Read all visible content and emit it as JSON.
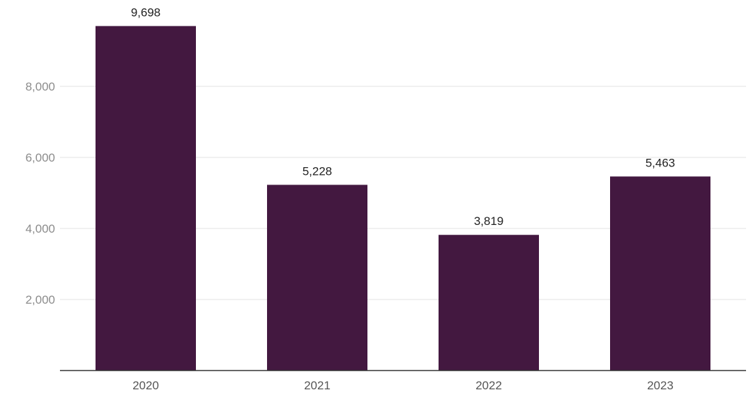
{
  "chart_data": {
    "type": "bar",
    "categories": [
      "2020",
      "2021",
      "2022",
      "2023"
    ],
    "values": [
      9698,
      5228,
      3819,
      5463
    ],
    "value_labels": [
      "9,698",
      "5,228",
      "3,819",
      "5,463"
    ],
    "title": "",
    "xlabel": "",
    "ylabel": "",
    "ylim": [
      0,
      10000
    ],
    "y_ticks": [
      2000,
      4000,
      6000,
      8000
    ],
    "y_tick_labels": [
      "2,000",
      "4,000",
      "6,000",
      "8,000"
    ],
    "grid": true,
    "colors": {
      "bar": "#431840"
    }
  }
}
